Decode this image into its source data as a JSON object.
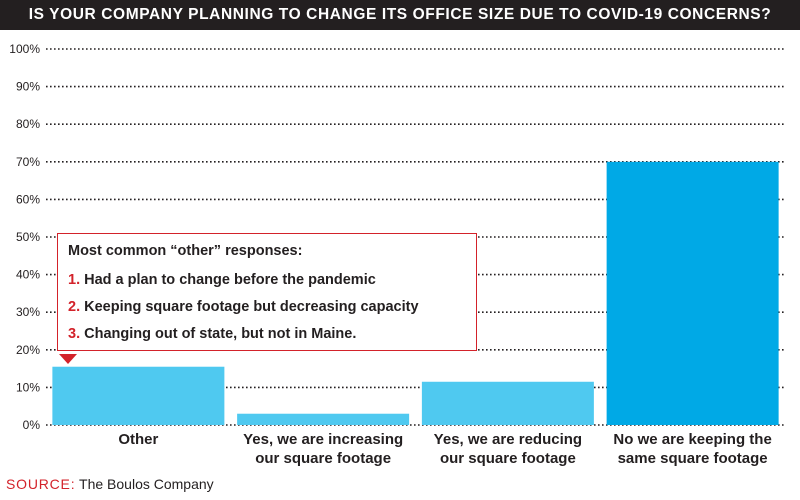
{
  "title": "IS YOUR COMPANY PLANNING TO CHANGE ITS OFFICE SIZE DUE TO COVID-19 CONCERNS?",
  "chart_data": {
    "type": "bar",
    "categories": [
      [
        "Other"
      ],
      [
        "Yes, we are increasing",
        "our square footage"
      ],
      [
        "Yes, we are reducing",
        "our square footage"
      ],
      [
        "No we are keeping the",
        "same square footage"
      ]
    ],
    "values": [
      15.5,
      3,
      11.5,
      70
    ],
    "unit": "%",
    "ylim": [
      0,
      100
    ],
    "yticks": [
      "0%",
      "10%",
      "20%",
      "30%",
      "40%",
      "50%",
      "60%",
      "70%",
      "80%",
      "90%",
      "100%"
    ],
    "grid": true,
    "colors": [
      "#4fc9f0",
      "#4fc9f0",
      "#4fc9f0",
      "#00a9e6"
    ]
  },
  "callout": {
    "title": "Most common “other” responses:",
    "items": [
      {
        "num": "1.",
        "text": "Had a plan to change before the pandemic"
      },
      {
        "num": "2.",
        "text": "Keeping square footage but decreasing capacity"
      },
      {
        "num": "3.",
        "text": "Changing out of state, but not in Maine."
      }
    ]
  },
  "source": {
    "label": "SOURCE:",
    "text": "The Boulos Company"
  },
  "colors": {
    "accent": "#d3222a",
    "title_bg": "#231f20"
  }
}
